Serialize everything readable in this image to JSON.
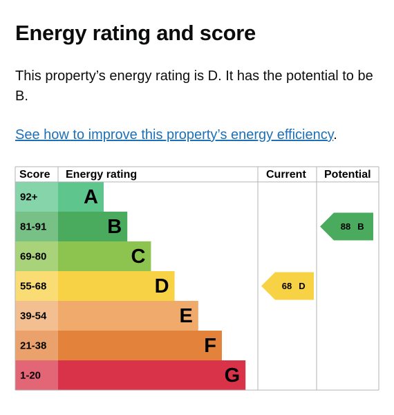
{
  "heading": "Energy rating and score",
  "summary": "This property’s energy rating is D. It has the potential to be B.",
  "link": "See how to improve this property’s energy efficiency",
  "link_suffix": ".",
  "table": {
    "headers": [
      "Score",
      "Energy rating",
      "Current",
      "Potential"
    ],
    "bands": [
      {
        "score": "92+",
        "letter": "A",
        "color": "#5ec58c"
      },
      {
        "score": "81-91",
        "letter": "B",
        "color": "#4aab5e"
      },
      {
        "score": "69-80",
        "letter": "C",
        "color": "#8cc44f"
      },
      {
        "score": "55-68",
        "letter": "D",
        "color": "#f7d245"
      },
      {
        "score": "39-54",
        "letter": "E",
        "color": "#efaa6c"
      },
      {
        "score": "21-38",
        "letter": "F",
        "color": "#e3823a"
      },
      {
        "score": "1-20",
        "letter": "G",
        "color": "#d9334a"
      }
    ],
    "current": {
      "value": 68,
      "letter": "D"
    },
    "potential": {
      "value": 88,
      "letter": "B"
    }
  }
}
